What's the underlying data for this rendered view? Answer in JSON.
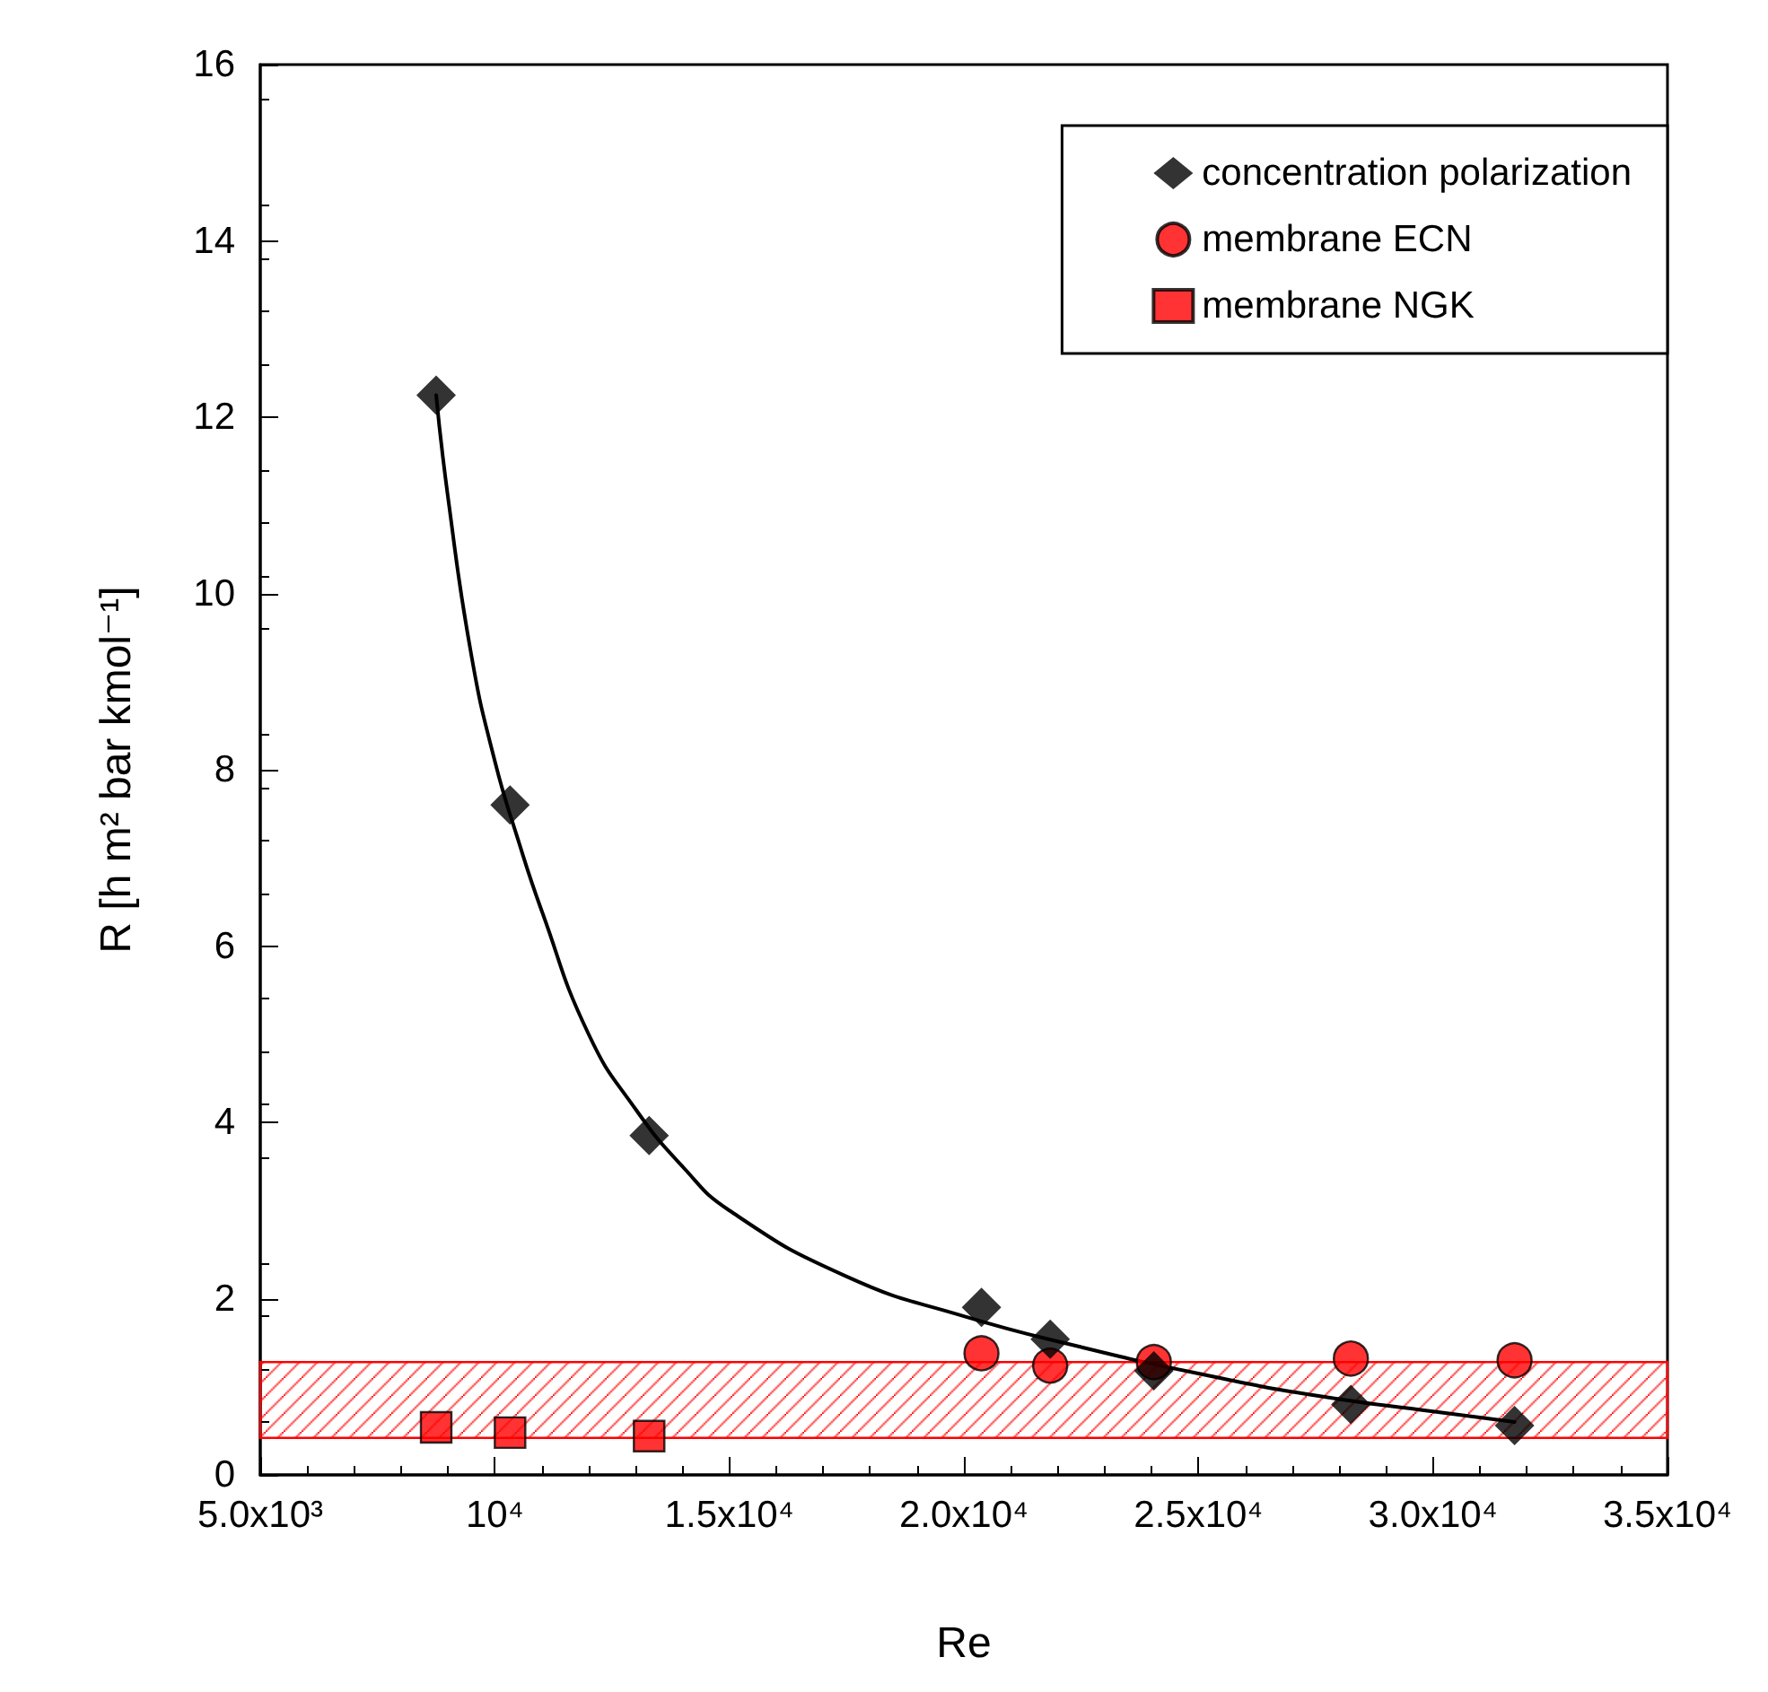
{
  "chart_data": {
    "type": "scatter",
    "xlabel": "Re",
    "ylabel": "R [h m² bar kmol⁻¹]",
    "xlim": [
      5000,
      35000
    ],
    "xticks": [
      {
        "value": 5000,
        "label": "5.0x10³"
      },
      {
        "value": 10000,
        "label": "10⁴"
      },
      {
        "value": 15000,
        "label": "1.5x10⁴"
      },
      {
        "value": 20000,
        "label": "2.0x10⁴"
      },
      {
        "value": 25000,
        "label": "2.5x10⁴"
      },
      {
        "value": 30000,
        "label": "3.0x10⁴"
      },
      {
        "value": 35000,
        "label": "3.5x10⁴"
      }
    ],
    "ylim": [
      0,
      16
    ],
    "yticks": [
      0,
      2,
      4,
      6,
      8,
      10,
      12,
      14,
      16
    ],
    "grid": false,
    "legend": "top right",
    "bands": [
      {
        "axis": "y",
        "from": 0.42,
        "to": 1.28,
        "color": "#ff0000"
      }
    ],
    "series": [
      {
        "type": "line",
        "color": "#000000",
        "line_style": "solid",
        "marker": "none",
        "x": [
          8750,
          9000,
          9500,
          10000,
          10500,
          11000,
          12000,
          13000,
          14000,
          15000,
          17500,
          20000,
          22500,
          25000,
          27500,
          30000,
          31740
        ],
        "values": [
          12.25,
          11.1,
          9.3,
          8.1,
          7.2,
          6.4,
          5.0,
          4.15,
          3.5,
          3.0,
          2.25,
          1.8,
          1.45,
          1.15,
          0.9,
          0.72,
          0.6
        ]
      },
      {
        "name": "concentration polarization",
        "color": "#000000",
        "marker": "diamond",
        "x": [
          8750,
          10325,
          13290,
          20375,
          21840,
          24050,
          28250,
          31740
        ],
        "values": [
          12.25,
          7.6,
          3.85,
          1.9,
          1.54,
          1.18,
          0.8,
          0.56
        ]
      },
      {
        "name": "membrane ECN",
        "color": "#ff0000",
        "marker": "circle",
        "x": [
          20375,
          21840,
          24050,
          28250,
          31740
        ],
        "values": [
          1.38,
          1.24,
          1.28,
          1.32,
          1.3
        ]
      },
      {
        "name": "membrane NGK",
        "color": "#ff0000",
        "marker": "square",
        "x": [
          8750,
          10325,
          13290
        ],
        "values": [
          0.54,
          0.48,
          0.44
        ]
      }
    ]
  }
}
